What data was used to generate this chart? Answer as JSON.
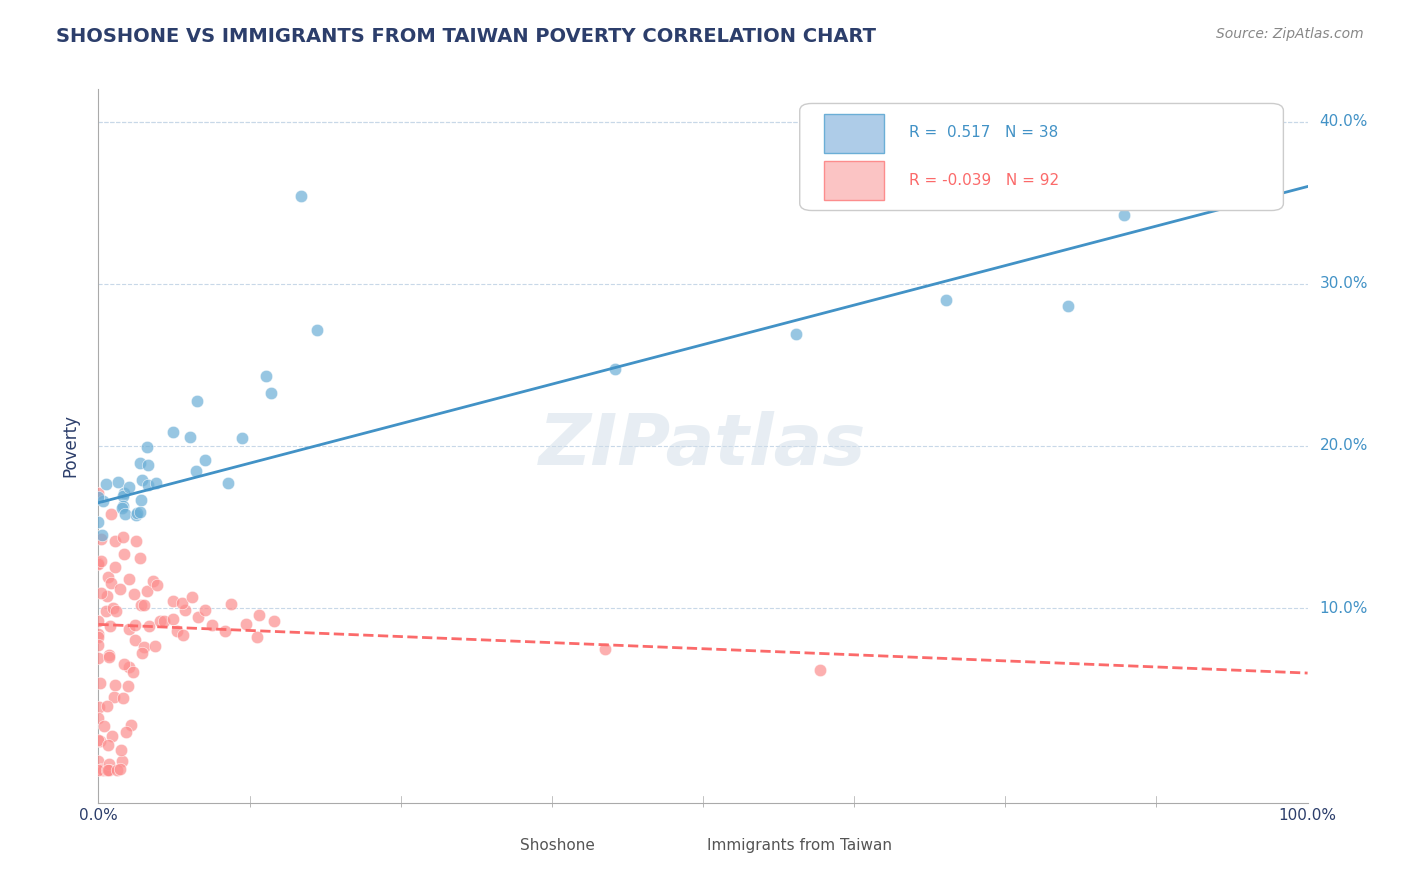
{
  "title": "SHOSHONE VS IMMIGRANTS FROM TAIWAN POVERTY CORRELATION CHART",
  "source": "Source: ZipAtlas.com",
  "ylabel": "Poverty",
  "xlabel": "",
  "xlim": [
    0.0,
    1.0
  ],
  "ylim": [
    -0.02,
    0.42
  ],
  "x_tick_labels": [
    "0.0%",
    "100.0%"
  ],
  "y_tick_labels": [
    "10.0%",
    "20.0%",
    "30.0%",
    "40.0%"
  ],
  "y_tick_values": [
    0.1,
    0.2,
    0.3,
    0.4
  ],
  "watermark": "ZIPatlas",
  "legend_r1": "R =  0.517",
  "legend_n1": "N = 38",
  "legend_r2": "R = -0.039",
  "legend_n2": "N = 92",
  "blue_color": "#6baed6",
  "pink_color": "#fc8d8d",
  "blue_line_color": "#4292c6",
  "pink_line_color": "#fb6a6a",
  "title_color": "#2c3e6b",
  "axis_color": "#2c3e6b",
  "grid_color": "#c8d8e8",
  "shoshone_points_x": [
    0.0,
    0.0,
    0.0,
    0.0,
    0.0,
    0.02,
    0.02,
    0.02,
    0.02,
    0.02,
    0.02,
    0.03,
    0.03,
    0.03,
    0.03,
    0.03,
    0.04,
    0.04,
    0.04,
    0.04,
    0.05,
    0.05,
    0.06,
    0.07,
    0.07,
    0.08,
    0.08,
    0.1,
    0.12,
    0.14,
    0.14,
    0.17,
    0.18,
    0.43,
    0.57,
    0.7,
    0.8,
    0.85
  ],
  "shoshone_points_y": [
    0.17,
    0.17,
    0.165,
    0.155,
    0.15,
    0.18,
    0.175,
    0.17,
    0.165,
    0.16,
    0.155,
    0.18,
    0.175,
    0.165,
    0.16,
    0.155,
    0.185,
    0.175,
    0.165,
    0.155,
    0.2,
    0.19,
    0.21,
    0.23,
    0.2,
    0.195,
    0.185,
    0.18,
    0.2,
    0.24,
    0.245,
    0.355,
    0.27,
    0.245,
    0.27,
    0.285,
    0.285,
    0.33
  ],
  "taiwan_points_x": [
    0.0,
    0.0,
    0.0,
    0.0,
    0.0,
    0.0,
    0.0,
    0.0,
    0.0,
    0.0,
    0.0,
    0.0,
    0.0,
    0.0,
    0.0,
    0.0,
    0.0,
    0.0,
    0.0,
    0.0,
    0.0,
    0.01,
    0.01,
    0.01,
    0.01,
    0.01,
    0.01,
    0.01,
    0.01,
    0.01,
    0.01,
    0.01,
    0.01,
    0.01,
    0.01,
    0.01,
    0.01,
    0.01,
    0.01,
    0.01,
    0.01,
    0.02,
    0.02,
    0.02,
    0.02,
    0.02,
    0.02,
    0.02,
    0.02,
    0.02,
    0.02,
    0.02,
    0.02,
    0.02,
    0.02,
    0.02,
    0.02,
    0.03,
    0.03,
    0.03,
    0.03,
    0.03,
    0.03,
    0.03,
    0.03,
    0.04,
    0.04,
    0.04,
    0.04,
    0.04,
    0.05,
    0.05,
    0.05,
    0.05,
    0.06,
    0.06,
    0.06,
    0.07,
    0.07,
    0.07,
    0.08,
    0.08,
    0.09,
    0.1,
    0.1,
    0.11,
    0.12,
    0.13,
    0.14,
    0.15,
    0.42,
    0.6
  ],
  "taiwan_points_y": [
    0.17,
    0.145,
    0.135,
    0.125,
    0.115,
    0.105,
    0.095,
    0.085,
    0.08,
    0.075,
    0.065,
    0.055,
    0.045,
    0.035,
    0.025,
    0.015,
    0.01,
    0.005,
    0.0,
    0.0,
    0.0,
    0.155,
    0.14,
    0.13,
    0.12,
    0.11,
    0.1,
    0.095,
    0.085,
    0.075,
    0.065,
    0.055,
    0.045,
    0.035,
    0.025,
    0.015,
    0.01,
    0.005,
    0.0,
    0.0,
    0.0,
    0.15,
    0.135,
    0.12,
    0.11,
    0.1,
    0.09,
    0.08,
    0.07,
    0.06,
    0.05,
    0.04,
    0.03,
    0.02,
    0.01,
    0.005,
    0.0,
    0.14,
    0.12,
    0.11,
    0.1,
    0.09,
    0.08,
    0.07,
    0.06,
    0.13,
    0.11,
    0.1,
    0.09,
    0.08,
    0.12,
    0.11,
    0.1,
    0.09,
    0.11,
    0.1,
    0.09,
    0.1,
    0.1,
    0.09,
    0.1,
    0.09,
    0.09,
    0.1,
    0.09,
    0.1,
    0.09,
    0.09,
    0.085,
    0.09,
    0.075,
    0.065
  ]
}
